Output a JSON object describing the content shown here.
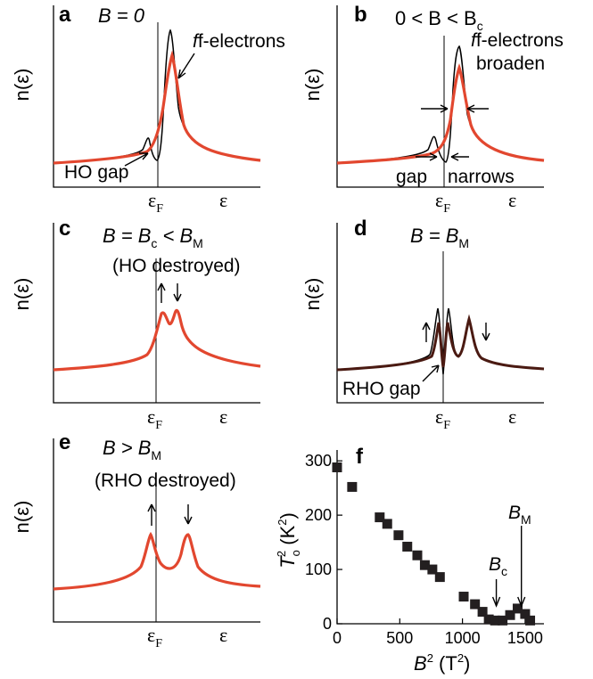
{
  "colors": {
    "red_curve": "#e2472f",
    "dark_curve": "#4a1a12",
    "axis": "#000000",
    "marker": "#231f20"
  },
  "panels": {
    "a": {
      "label": "a",
      "title": "B = 0",
      "ylabel": "n(ε)",
      "xlabel": "ε",
      "fermi_label": "ε",
      "fermi_sub": "F",
      "annotations": [
        "f-electrons",
        "HO gap"
      ]
    },
    "b": {
      "label": "b",
      "title": "0 < B < B",
      "title_sub": "c",
      "ylabel": "n(ε)",
      "xlabel": "ε",
      "fermi_label": "ε",
      "fermi_sub": "F",
      "annotations": [
        "f-electrons",
        "broaden",
        "gap",
        "narrows"
      ]
    },
    "c": {
      "label": "c",
      "title_line1": "B = B",
      "title_sub1": "c",
      "title_mid": " < B",
      "title_sub2": "M",
      "title_line2": "(HO  destroyed)",
      "ylabel": "n(ε)",
      "xlabel": "ε",
      "fermi_label": "ε",
      "fermi_sub": "F"
    },
    "d": {
      "label": "d",
      "title": "B = B",
      "title_sub": "M",
      "ylabel": "n(ε)",
      "xlabel": "ε",
      "fermi_label": "ε",
      "fermi_sub": "F",
      "annotations": [
        "RHO gap"
      ]
    },
    "e": {
      "label": "e",
      "title": "B > B",
      "title_sub": "M",
      "title_line2": "(RHO  destroyed)",
      "ylabel": "n(ε)",
      "xlabel": "ε",
      "fermi_label": "ε",
      "fermi_sub": "F"
    },
    "f": {
      "label": "f",
      "annotations": [
        "B",
        "c",
        "B",
        "M"
      ]
    }
  },
  "chart_data": {
    "type": "scatter",
    "panel": "f",
    "xlabel": "B² (T²)",
    "ylabel": "T_o² (K²)",
    "xlim": [
      0,
      1650
    ],
    "ylim": [
      0,
      320
    ],
    "x_ticks": [
      0,
      500,
      1000,
      1500
    ],
    "y_ticks": [
      0,
      100,
      200,
      300
    ],
    "x": [
      0,
      120,
      340,
      400,
      490,
      560,
      640,
      700,
      760,
      820,
      1010,
      1100,
      1160,
      1210,
      1260,
      1320,
      1380,
      1440,
      1500,
      1540
    ],
    "y": [
      288,
      252,
      196,
      184,
      163,
      142,
      126,
      108,
      100,
      86,
      50,
      36,
      22,
      8,
      6,
      6,
      16,
      28,
      18,
      6
    ],
    "markers": [
      {
        "label": "B_c",
        "x": 1270
      },
      {
        "label": "B_M",
        "x": 1470
      }
    ]
  }
}
